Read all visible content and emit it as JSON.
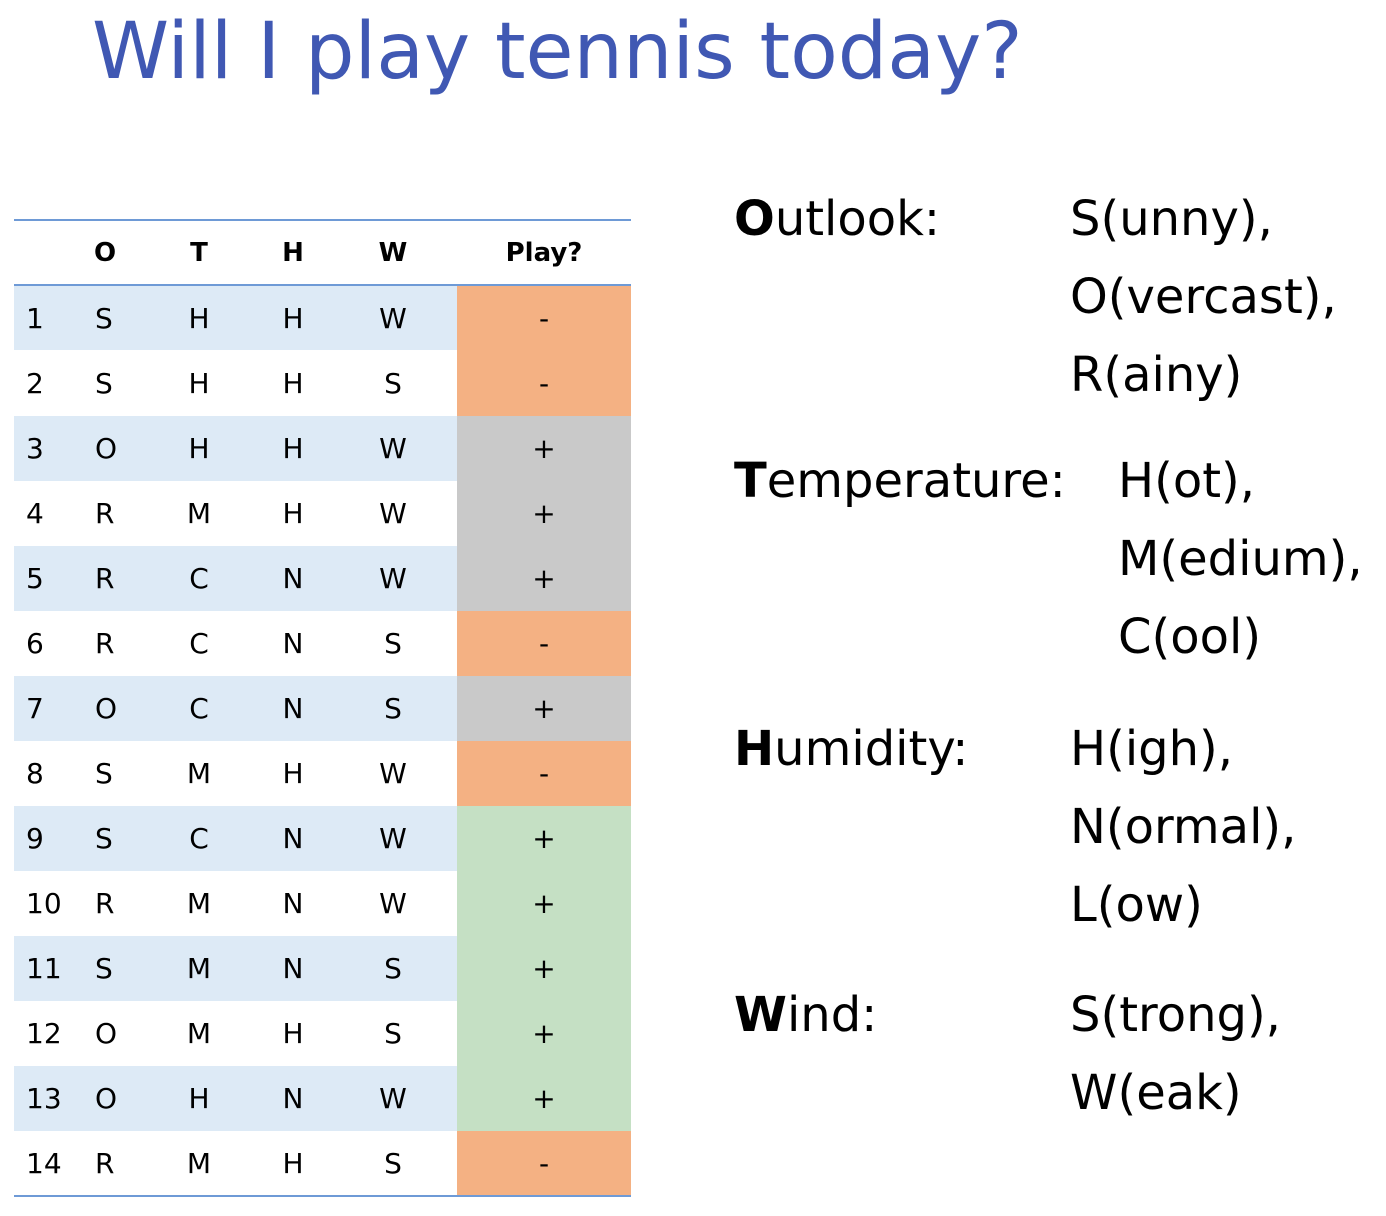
{
  "title": "Will I play tennis today?",
  "table": {
    "headers": [
      "",
      "O",
      "T",
      "H",
      "W",
      "Play?"
    ],
    "rows": [
      {
        "idx": "1",
        "o": "S",
        "t": "H",
        "h": "H",
        "w": "W",
        "play": "-"
      },
      {
        "idx": "2",
        "o": "S",
        "t": "H",
        "h": "H",
        "w": "S",
        "play": "-"
      },
      {
        "idx": "3",
        "o": "O",
        "t": "H",
        "h": "H",
        "w": "W",
        "play": "+"
      },
      {
        "idx": "4",
        "o": "R",
        "t": "M",
        "h": "H",
        "w": "W",
        "play": "+"
      },
      {
        "idx": "5",
        "o": "R",
        "t": "C",
        "h": "N",
        "w": "W",
        "play": "+"
      },
      {
        "idx": "6",
        "o": "R",
        "t": "C",
        "h": "N",
        "w": "S",
        "play": "-"
      },
      {
        "idx": "7",
        "o": "O",
        "t": "C",
        "h": "N",
        "w": "S",
        "play": "+"
      },
      {
        "idx": "8",
        "o": "S",
        "t": "M",
        "h": "H",
        "w": "W",
        "play": "-"
      },
      {
        "idx": "9",
        "o": "S",
        "t": "C",
        "h": "N",
        "w": "W",
        "play": "+"
      },
      {
        "idx": "10",
        "o": "R",
        "t": "M",
        "h": "N",
        "w": "W",
        "play": "+"
      },
      {
        "idx": "11",
        "o": "S",
        "t": "M",
        "h": "N",
        "w": "S",
        "play": "+"
      },
      {
        "idx": "12",
        "o": "O",
        "t": "M",
        "h": "H",
        "w": "S",
        "play": "+"
      },
      {
        "idx": "13",
        "o": "O",
        "t": "H",
        "h": "N",
        "w": "W",
        "play": "+"
      },
      {
        "idx": "14",
        "o": "R",
        "t": "M",
        "h": "H",
        "w": "S",
        "play": "-"
      }
    ]
  },
  "attributes": [
    {
      "initial": "O",
      "rest": "utlook:",
      "values": [
        "S(unny),",
        "O(vercast),",
        "R(ainy)"
      ]
    },
    {
      "initial": "T",
      "rest": "emperature:",
      "values": [
        "H(ot),",
        "M(edium),",
        "C(ool)"
      ]
    },
    {
      "initial": "H",
      "rest": "umidity:",
      "values": [
        "H(igh),",
        "N(ormal),",
        "L(ow)"
      ]
    },
    {
      "initial": "W",
      "rest": "ind:",
      "values": [
        "S(trong),",
        "W(eak)"
      ]
    }
  ],
  "colors": {
    "title": "#4058b3",
    "row_shade": "#ddeaf6",
    "negative": "#f4b183",
    "positive_gray": "#c9c9c9",
    "positive_green": "#c5e0c4",
    "rule": "#6e9ad6"
  }
}
